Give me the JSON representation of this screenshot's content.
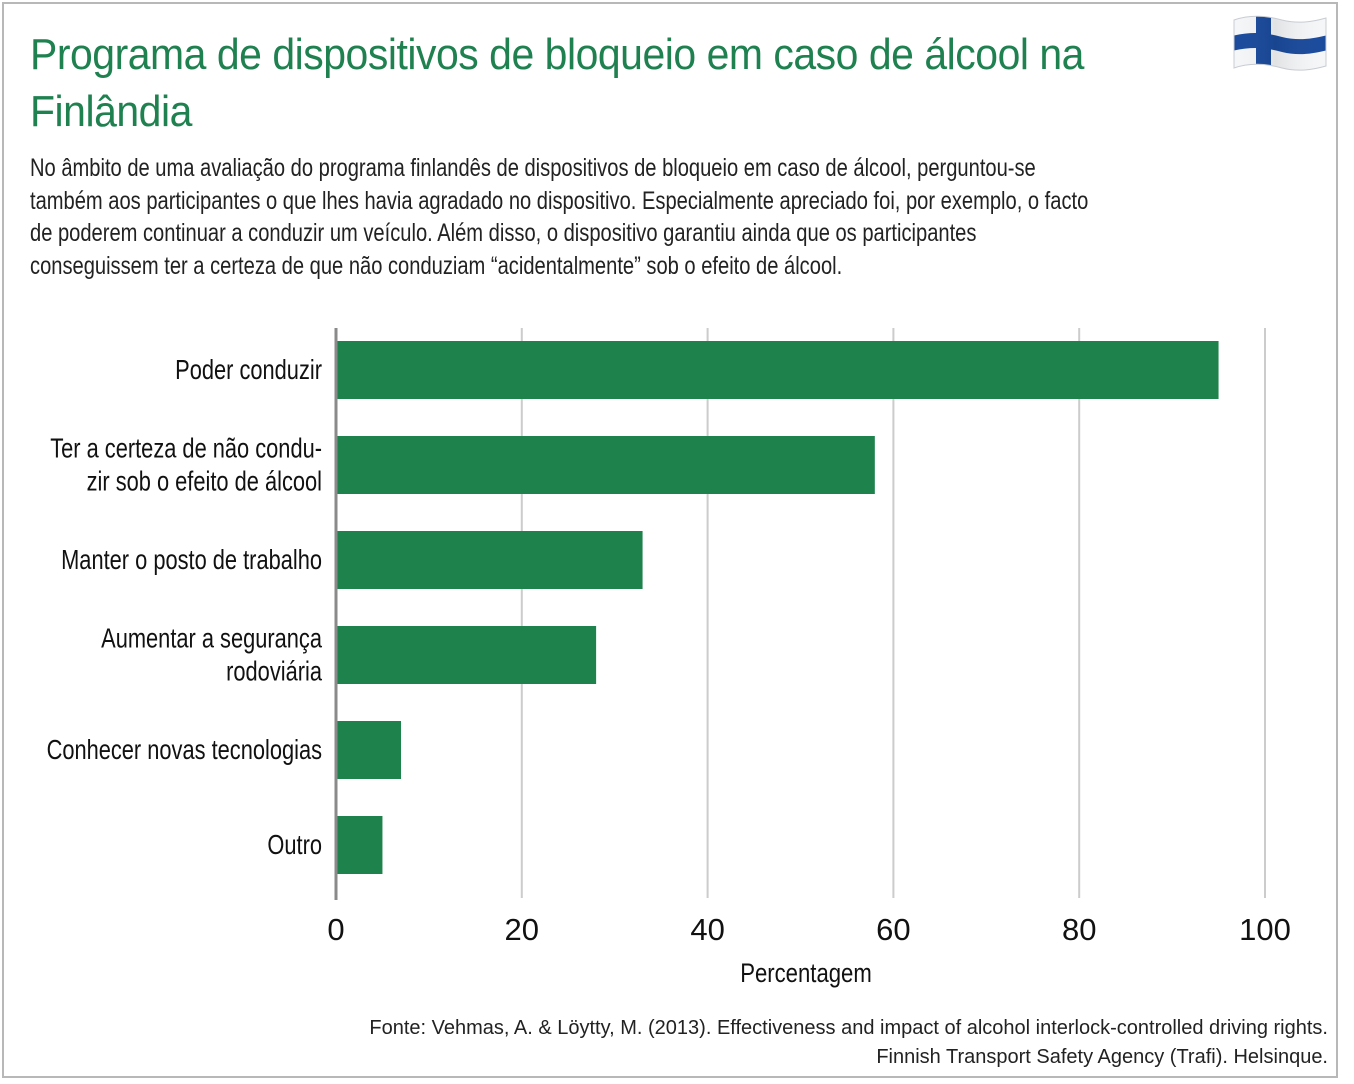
{
  "title": "Programa de dispositivos de bloqueio em caso de álcool na Finlândia",
  "subtitle": "No âmbito de uma avaliação do programa finlandês de dispositivos de bloqueio em caso de álcool, perguntou-se também aos participantes o que lhes havia agradado no dispositivo. Especialmente apreciado foi, por exemplo, o facto de poderem continuar a conduzir um veículo. Além disso, o dispositivo garantiu ainda que os participantes conseguissem ter a certeza de que não conduziam “acidentalmente” sob o efeito de álcool.",
  "flag_icon": "finland-flag-icon",
  "colors": {
    "title": "#1f8150",
    "bar": "#1e824c",
    "grid": "#cccccc",
    "flag_blue": "#1a4a9c"
  },
  "chart_data": {
    "type": "bar",
    "orientation": "horizontal",
    "categories": [
      [
        "Poder conduzir"
      ],
      [
        "Ter a certeza de não condu-",
        "zir sob o efeito de álcool"
      ],
      [
        "Manter o posto de trabalho"
      ],
      [
        "Aumentar a segurança",
        "rodoviária"
      ],
      [
        "Conhecer novas tecnologias"
      ],
      [
        "Outro"
      ]
    ],
    "values": [
      95,
      58,
      33,
      28,
      7,
      5
    ],
    "xlabel": "Percentagem",
    "ylabel": "",
    "xlim": [
      0,
      100
    ],
    "ticks": [
      0,
      20,
      40,
      60,
      80,
      100
    ],
    "grid": true,
    "legend": "none"
  },
  "source": {
    "line1": "Fonte: Vehmas, A. & Löytty, M. (2013). Effectiveness and impact of alcohol interlock-controlled driving rights.",
    "line2": "Finnish Transport Safety Agency (Trafi). Helsinque."
  }
}
